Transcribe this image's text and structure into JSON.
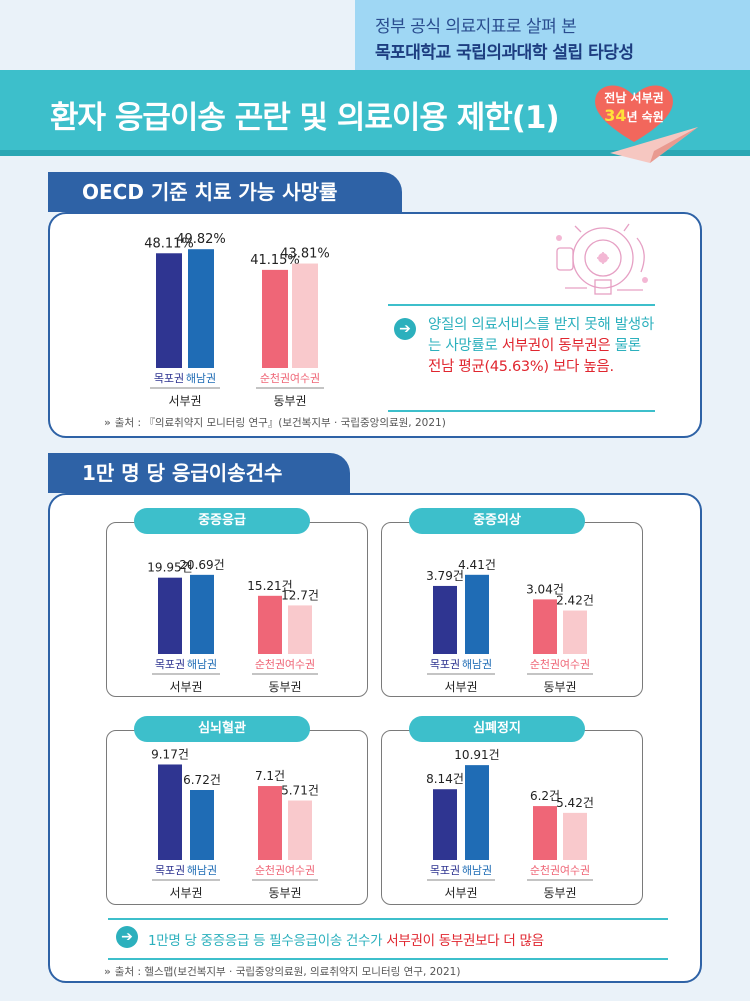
{
  "header": {
    "subtitle_line1": "정부 공식 의료지표로 살펴 본",
    "subtitle_line2": "목포대학교 국립의과대학 설립 타당성",
    "title": "환자 응급이송 곤란 및 의료이용 제한(1)",
    "badge_line1": "전남 서부권",
    "badge_num": "34",
    "badge_line2": "년 숙원"
  },
  "colors": {
    "mokpo": "#2f3591",
    "haenam": "#1f6cb5",
    "suncheon": "#ef6677",
    "yeosu": "#f9c9cc",
    "accent": "#3dbfcb",
    "section": "#2e62a6"
  },
  "section1": {
    "tab": "OECD 기준 치료 가능 사망률",
    "note": {
      "part1": "양질의 의료서비스를 받지 못해 발생하는 사망률로 ",
      "red1": "서부권이 동부권은",
      "part2": " 물론 ",
      "red2": "전남 평균(45.63%) 보다 높음.",
      "arrow_icon": "arrow-right-circle-icon"
    },
    "source": "출처 : 『의료취약지 모니터링 연구』(보건복지부 · 국립중앙의료원, 2021)"
  },
  "section2": {
    "tab": "1만 명 당 응급이송건수",
    "bottom_note": {
      "part1": "1만명 당 중증응급 등 필수응급이송 건수가 ",
      "red": "서부권이 동부권보다 더 많음",
      "arrow_icon": "arrow-right-circle-icon"
    },
    "source": "출처 : 헬스맵(보건복지부 · 국립중앙의료원, 의료취약지 모니터링 연구, 2021)"
  },
  "chart_data": [
    {
      "type": "bar",
      "title": "OECD 기준 치료 가능 사망률",
      "categories": [
        "목포권",
        "해남권",
        "순천권",
        "여수권"
      ],
      "groups": [
        "서부권",
        "동부권"
      ],
      "values": [
        48.11,
        49.82,
        41.15,
        43.81
      ],
      "value_labels": [
        "48.11%",
        "49.82%",
        "41.15%",
        "43.81%"
      ],
      "ylim": [
        0,
        52
      ]
    },
    {
      "type": "bar",
      "title": "중증응급",
      "categories": [
        "목포권",
        "해남권",
        "순천권",
        "여수권"
      ],
      "groups": [
        "서부권",
        "동부권"
      ],
      "values": [
        19.95,
        20.69,
        15.21,
        12.7
      ],
      "value_labels": [
        "19.95건",
        "20.69건",
        "15.21건",
        "12.7건"
      ],
      "ylim": [
        0,
        23
      ]
    },
    {
      "type": "bar",
      "title": "중증외상",
      "categories": [
        "목포권",
        "해남권",
        "순천권",
        "여수권"
      ],
      "groups": [
        "서부권",
        "동부권"
      ],
      "values": [
        3.79,
        4.41,
        3.04,
        2.42
      ],
      "value_labels": [
        "3.79건",
        "4.41건",
        "3.04건",
        "2.42건"
      ],
      "ylim": [
        0,
        4.9
      ]
    },
    {
      "type": "bar",
      "title": "심뇌혈관",
      "categories": [
        "목포권",
        "해남권",
        "순천권",
        "여수권"
      ],
      "groups": [
        "서부권",
        "동부권"
      ],
      "values": [
        9.17,
        6.72,
        7.1,
        5.71
      ],
      "value_labels": [
        "9.17건",
        "6.72건",
        "7.1건",
        "5.71건"
      ],
      "ylim": [
        0,
        9.6
      ]
    },
    {
      "type": "bar",
      "title": "심폐정지",
      "categories": [
        "목포권",
        "해남권",
        "순천권",
        "여수권"
      ],
      "groups": [
        "서부권",
        "동부권"
      ],
      "values": [
        8.14,
        10.91,
        6.2,
        5.42
      ],
      "value_labels": [
        "8.14건",
        "10.91건",
        "6.2건",
        "5.42건"
      ],
      "ylim": [
        0,
        11.5
      ]
    }
  ]
}
